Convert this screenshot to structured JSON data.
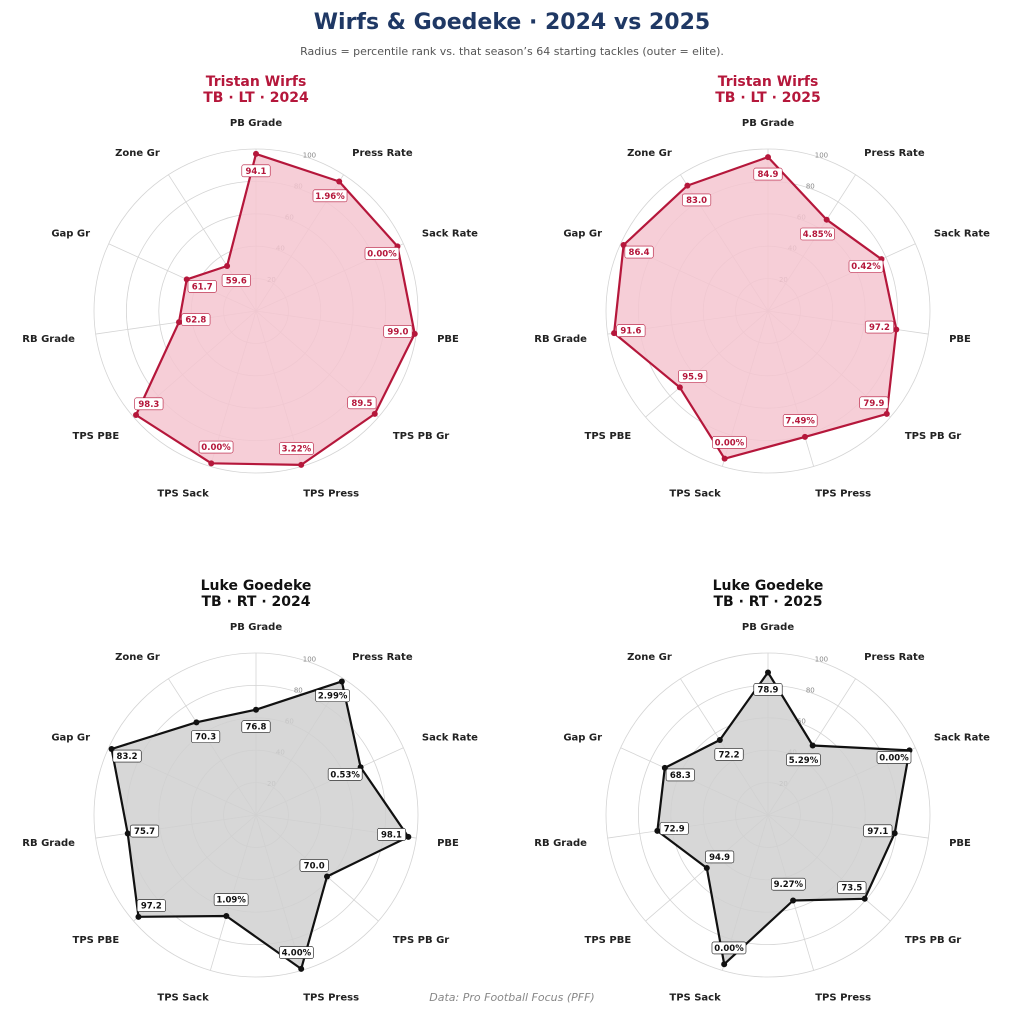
{
  "title": "Wirfs & Goedeke  ·  2024 vs 2025",
  "subtitle": "Radius = percentile rank vs. that season’s 64 starting tackles (outer = elite).",
  "footer": "Data: Pro Football Focus (PFF)",
  "chart_data": [
    {
      "type": "radar",
      "title_line1": "Tristan Wirfs",
      "title_line2": "TB · LT · 2024",
      "color": "#b5173b",
      "fill": "#f4c6d0",
      "axes": [
        "PB Grade",
        "Press Rate",
        "Sack Rate",
        "PBE",
        "TPS PB Gr",
        "TPS Press",
        "TPS Sack",
        "TPS PBE",
        "RB Grade",
        "Gap Gr",
        "Zone Gr"
      ],
      "percentiles": [
        97,
        95,
        96,
        99,
        97,
        99,
        98,
        98,
        48,
        47,
        33
      ],
      "value_labels": [
        "94.1",
        "1.96%",
        "0.00%",
        "99.0",
        "89.5",
        "3.22%",
        "0.00%",
        "98.3",
        "62.8",
        "61.7",
        "59.6"
      ],
      "radial_ticks": [
        20,
        40,
        60,
        80,
        100
      ],
      "rmax": 100
    },
    {
      "type": "radar",
      "title_line1": "Tristan Wirfs",
      "title_line2": "TB · LT · 2025",
      "color": "#b5173b",
      "fill": "#f4c6d0",
      "axes": [
        "PB Grade",
        "Press Rate",
        "Sack Rate",
        "PBE",
        "TPS PB Gr",
        "TPS Press",
        "TPS Sack",
        "TPS PBE",
        "RB Grade",
        "Gap Gr",
        "Zone Gr"
      ],
      "percentiles": [
        95,
        67,
        77,
        80,
        97,
        81,
        95,
        72,
        96,
        98,
        92
      ],
      "value_labels": [
        "84.9",
        "4.85%",
        "0.42%",
        "97.2",
        "79.9",
        "7.49%",
        "0.00%",
        "95.9",
        "91.6",
        "86.4",
        "83.0"
      ],
      "radial_ticks": [
        20,
        40,
        60,
        80,
        100
      ],
      "rmax": 100
    },
    {
      "type": "radar",
      "title_line1": "Luke Goedeke",
      "title_line2": "TB · RT · 2024",
      "color": "#111111",
      "fill": "#d0d0d0",
      "axes": [
        "PB Grade",
        "Press Rate",
        "Sack Rate",
        "PBE",
        "TPS PB Gr",
        "TPS Press",
        "TPS Sack",
        "TPS PBE",
        "RB Grade",
        "Gap Gr",
        "Zone Gr"
      ],
      "percentiles": [
        65,
        98,
        71,
        95,
        58,
        99,
        65,
        96,
        80,
        98,
        68
      ],
      "value_labels": [
        "76.8",
        "2.99%",
        "0.53%",
        "98.1",
        "70.0",
        "4.00%",
        "1.09%",
        "97.2",
        "75.7",
        "83.2",
        "70.3"
      ],
      "radial_ticks": [
        20,
        40,
        60,
        80,
        100
      ],
      "rmax": 100
    },
    {
      "type": "radar",
      "title_line1": "Luke Goedeke",
      "title_line2": "TB · RT · 2025",
      "color": "#111111",
      "fill": "#d0d0d0",
      "axes": [
        "PB Grade",
        "Press Rate",
        "Sack Rate",
        "PBE",
        "TPS PB Gr",
        "TPS Press",
        "TPS Sack",
        "TPS PBE",
        "RB Grade",
        "Gap Gr",
        "Zone Gr"
      ],
      "percentiles": [
        88,
        51,
        96,
        79,
        79,
        55,
        96,
        50,
        69,
        70,
        55
      ],
      "value_labels": [
        "78.9",
        "5.29%",
        "0.00%",
        "97.1",
        "73.5",
        "9.27%",
        "0.00%",
        "94.9",
        "72.9",
        "68.3",
        "72.2"
      ],
      "radial_ticks": [
        20,
        40,
        60,
        80,
        100
      ],
      "rmax": 100
    }
  ]
}
